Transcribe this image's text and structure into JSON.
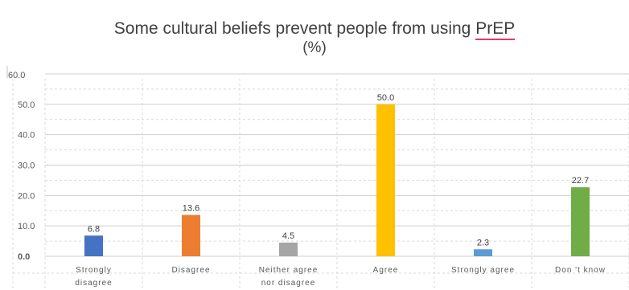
{
  "chart_data": {
    "type": "bar",
    "title_prefix": "Some cultural beliefs prevent people from using ",
    "title_underlined": "PrEP",
    "subtitle": "(%)",
    "categories": [
      [
        "Strongly",
        "disagree"
      ],
      [
        "Disagree"
      ],
      [
        "Neither agree",
        "nor disagree"
      ],
      [
        "Agree"
      ],
      [
        "Strongly agree"
      ],
      [
        "Don 't know"
      ]
    ],
    "values": [
      6.8,
      13.6,
      4.5,
      50.0,
      2.3,
      22.7
    ],
    "value_labels": [
      "6.8",
      "13.6",
      "4.5",
      "50.0",
      "2.3",
      "22.7"
    ],
    "colors": [
      "#4472c4",
      "#ed7d31",
      "#a5a5a5",
      "#ffc000",
      "#5b9bd5",
      "#70ad47"
    ],
    "yticks": [
      "0.0",
      "10.0",
      "20.0",
      "30.0",
      "40.0",
      "50.0",
      "60.0"
    ],
    "ylim": [
      0,
      60
    ],
    "grid": true
  }
}
